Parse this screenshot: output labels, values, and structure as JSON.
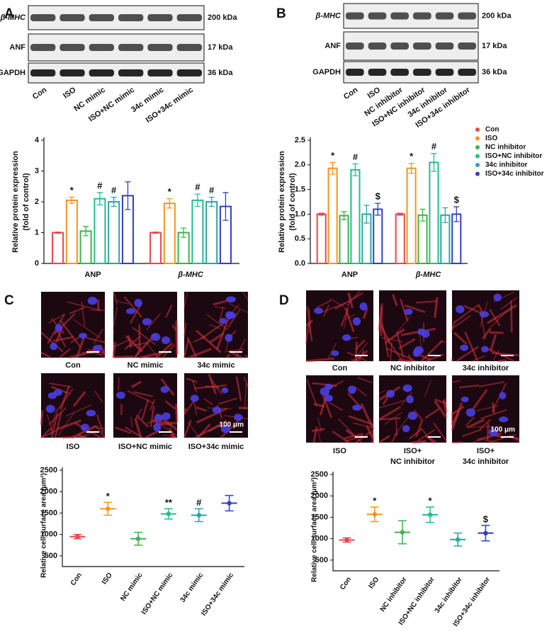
{
  "panel_labels": [
    "A",
    "B",
    "C",
    "D"
  ],
  "blots": [
    {
      "rows": [
        "β-MHC",
        "ANF",
        "GAPDH"
      ],
      "sizes": [
        "200 kDa",
        "17 kDa",
        "36 kDa"
      ],
      "lanes": [
        "Con",
        "ISO",
        "NC mimic",
        "ISO+NC mimic",
        "34c mimic",
        "ISO+34c mimic"
      ]
    },
    {
      "rows": [
        "β-MHC",
        "ANF",
        "GAPDH"
      ],
      "sizes": [
        "200 kDa",
        "17 kDa",
        "36 kDa"
      ],
      "lanes": [
        "Con",
        "ISO",
        "NC inhibitor",
        "ISO+NC inhibitor",
        "34c inhibitor",
        "ISO+34c inhibitor"
      ]
    }
  ],
  "micrographs": [
    {
      "labels": [
        [
          "Con"
        ],
        [
          "NC mimic"
        ],
        [
          "34c mimic"
        ],
        [
          "ISO"
        ],
        [
          "ISO+NC mimic"
        ],
        [
          "ISO+34c mimic"
        ]
      ],
      "scale_bar": "100 μm"
    },
    {
      "labels": [
        [
          "Con"
        ],
        [
          "NC inhibitor"
        ],
        [
          "34c inhibitor"
        ],
        [
          "ISO"
        ],
        [
          "ISO+",
          "NC inhibitor"
        ],
        [
          "ISO+",
          "34c inhibitor"
        ]
      ],
      "scale_bar": "100 μm"
    }
  ],
  "chart_data": [
    {
      "type": "bar",
      "ylabel": [
        "Relative protein expression",
        "(fold of control)"
      ],
      "categories": [
        "ANP",
        "β-MHC"
      ],
      "ylim": [
        0,
        4
      ],
      "yticks": [
        0,
        1,
        2,
        3,
        4
      ],
      "series": [
        {
          "name": "Con",
          "color": "#e8474f",
          "values": [
            1,
            1
          ],
          "errors": [
            0.02,
            0.02
          ],
          "sig": [
            null,
            null
          ]
        },
        {
          "name": "ISO",
          "color": "#f7941d",
          "values": [
            2.05,
            1.95
          ],
          "errors": [
            0.1,
            0.15
          ],
          "sig": [
            "*",
            "*"
          ]
        },
        {
          "name": "NC mimic",
          "color": "#3cb44b",
          "values": [
            1.05,
            1.0
          ],
          "errors": [
            0.15,
            0.15
          ],
          "sig": [
            null,
            null
          ]
        },
        {
          "name": "ISO+NC mimic",
          "color": "#1dbf8e",
          "values": [
            2.1,
            2.05
          ],
          "errors": [
            0.2,
            0.2
          ],
          "sig": [
            "#",
            "#"
          ]
        },
        {
          "name": "34c mimic",
          "color": "#2aa5a5",
          "values": [
            2.0,
            2.0
          ],
          "errors": [
            0.15,
            0.15
          ],
          "sig": [
            "#",
            "#"
          ]
        },
        {
          "name": "ISO+34c mimic",
          "color": "#3040c0",
          "values": [
            2.2,
            1.85
          ],
          "errors": [
            0.45,
            0.45
          ],
          "sig": [
            null,
            null
          ]
        }
      ]
    },
    {
      "type": "bar",
      "ylabel": [
        "Relative protein expression",
        "(fold of control)"
      ],
      "categories": [
        "ANP",
        "β-MHC"
      ],
      "ylim": [
        0,
        2.5
      ],
      "yticks": [
        {
          "value": 0,
          "label": "0.0"
        },
        0.5,
        {
          "value": 1,
          "label": "1.0"
        },
        1.5,
        {
          "value": 2,
          "label": "2.0"
        },
        2.5
      ],
      "legend": "right",
      "series": [
        {
          "name": "Con",
          "color": "#e8474f",
          "values": [
            1,
            1
          ],
          "errors": [
            0.02,
            0.02
          ],
          "sig": [
            null,
            null
          ]
        },
        {
          "name": "ISO",
          "color": "#f7941d",
          "values": [
            1.93,
            1.93
          ],
          "errors": [
            0.12,
            0.1
          ],
          "sig": [
            "*",
            "*"
          ]
        },
        {
          "name": "NC inhibitor",
          "color": "#3cb44b",
          "values": [
            0.97,
            0.98
          ],
          "errors": [
            0.08,
            0.12
          ],
          "sig": [
            null,
            null
          ]
        },
        {
          "name": "ISO+NC inhibitor",
          "color": "#1dbf8e",
          "values": [
            1.9,
            2.05
          ],
          "errors": [
            0.12,
            0.18
          ],
          "sig": [
            "#",
            "#"
          ]
        },
        {
          "name": "34c inhibitor",
          "color": "#2aa5a5",
          "values": [
            1.0,
            0.98
          ],
          "errors": [
            0.18,
            0.15
          ],
          "sig": [
            null,
            null
          ]
        },
        {
          "name": "ISO+34c inhibitor",
          "color": "#3040c0",
          "values": [
            1.1,
            1.0
          ],
          "errors": [
            0.12,
            0.15
          ],
          "sig": [
            "$",
            "$"
          ]
        }
      ]
    },
    {
      "type": "dotplot",
      "ylabel": "Relative cell-surface area (μm²)",
      "categories": [
        "Con",
        "ISO",
        "NC mimic",
        "ISO+NC mimic",
        "34c mimic",
        "ISO+34c mimic"
      ],
      "colors": [
        "#e8474f",
        "#f7941d",
        "#3cb44b",
        "#1dbf8e",
        "#2aa5a5",
        "#3040c0"
      ],
      "values": [
        950,
        1600,
        900,
        1480,
        1450,
        1730
      ],
      "errors": [
        50,
        150,
        150,
        120,
        150,
        180
      ],
      "sig": [
        null,
        "*",
        null,
        "**",
        "#",
        null
      ],
      "ylim": [
        250,
        2500
      ],
      "yticks": [
        500,
        1000,
        1500,
        2000,
        2500
      ]
    },
    {
      "type": "dotplot",
      "ylabel": "Relative cell-surface area (μm²)",
      "categories": [
        "Con",
        "ISO",
        "NC inhibitor",
        "ISO+NC inhibitor",
        "34c inhibitor",
        "ISO+34c inhibitor"
      ],
      "colors": [
        "#e8474f",
        "#f7941d",
        "#3cb44b",
        "#1dbf8e",
        "#2aa5a5",
        "#3040c0"
      ],
      "values": [
        970,
        1570,
        1150,
        1560,
        980,
        1130
      ],
      "errors": [
        50,
        170,
        270,
        180,
        150,
        180
      ],
      "sig": [
        null,
        "*",
        null,
        "*",
        null,
        "$"
      ],
      "ylim": [
        250,
        2500
      ],
      "yticks": [
        500,
        1000,
        1500,
        2000,
        2500
      ]
    }
  ]
}
